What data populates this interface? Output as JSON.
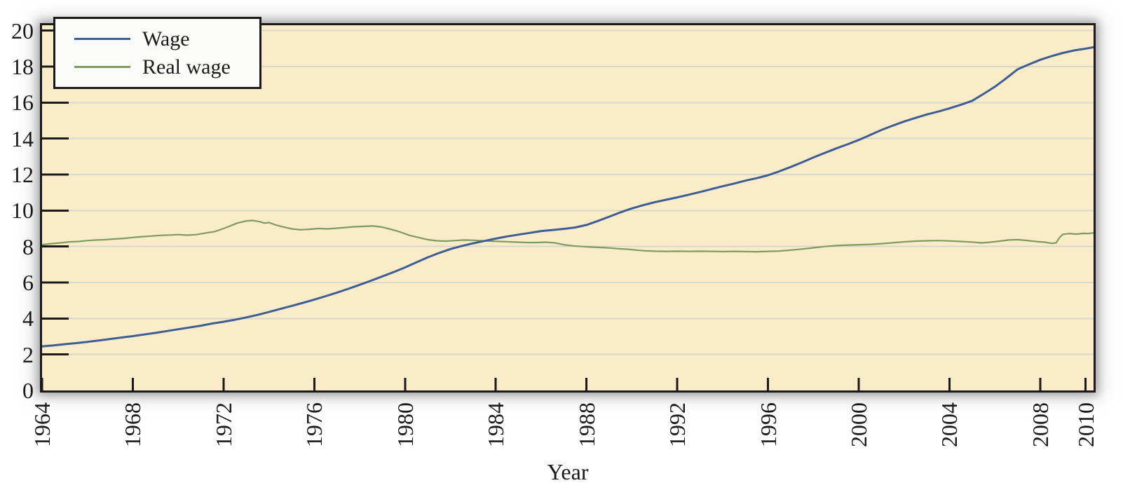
{
  "chart_data": {
    "type": "line",
    "title": "",
    "xlabel": "Year",
    "ylabel": "",
    "xlim": [
      1964,
      2010.35
    ],
    "ylim": [
      0,
      20.3
    ],
    "x_ticks": [
      1964,
      1968,
      1972,
      1976,
      1980,
      1984,
      1988,
      1992,
      1996,
      2000,
      2004,
      2008,
      2010
    ],
    "y_ticks": [
      0,
      2,
      4,
      6,
      8,
      10,
      12,
      14,
      16,
      18,
      20
    ],
    "grid": "horizontal",
    "legend_position": "top-left",
    "plot_background": "#faecc9",
    "grid_color": "#d8d6c9",
    "axis_color": "#1a1a1a",
    "y_tick_length": 38,
    "x_tick_length": 18,
    "series": [
      {
        "name": "Wage",
        "color": "#3d5e94",
        "width": 3,
        "points": [
          [
            1964,
            2.45
          ],
          [
            1964.5,
            2.5
          ],
          [
            1965,
            2.57
          ],
          [
            1965.5,
            2.63
          ],
          [
            1966,
            2.7
          ],
          [
            1966.5,
            2.78
          ],
          [
            1967,
            2.86
          ],
          [
            1967.5,
            2.94
          ],
          [
            1968,
            3.02
          ],
          [
            1968.5,
            3.11
          ],
          [
            1969,
            3.2
          ],
          [
            1969.5,
            3.3
          ],
          [
            1970,
            3.4
          ],
          [
            1970.5,
            3.5
          ],
          [
            1971,
            3.6
          ],
          [
            1971.5,
            3.72
          ],
          [
            1972,
            3.82
          ],
          [
            1972.5,
            3.93
          ],
          [
            1973,
            4.06
          ],
          [
            1973.5,
            4.2
          ],
          [
            1974,
            4.36
          ],
          [
            1974.5,
            4.53
          ],
          [
            1975,
            4.7
          ],
          [
            1975.5,
            4.87
          ],
          [
            1976,
            5.05
          ],
          [
            1976.5,
            5.24
          ],
          [
            1977,
            5.44
          ],
          [
            1977.5,
            5.65
          ],
          [
            1978,
            5.87
          ],
          [
            1978.5,
            6.1
          ],
          [
            1979,
            6.34
          ],
          [
            1979.5,
            6.58
          ],
          [
            1980,
            6.84
          ],
          [
            1980.5,
            7.12
          ],
          [
            1981,
            7.4
          ],
          [
            1981.5,
            7.64
          ],
          [
            1982,
            7.86
          ],
          [
            1982.5,
            8.03
          ],
          [
            1983,
            8.18
          ],
          [
            1983.5,
            8.31
          ],
          [
            1984,
            8.44
          ],
          [
            1984.5,
            8.56
          ],
          [
            1985,
            8.66
          ],
          [
            1985.5,
            8.76
          ],
          [
            1986,
            8.86
          ],
          [
            1986.5,
            8.92
          ],
          [
            1987,
            8.98
          ],
          [
            1987.5,
            9.06
          ],
          [
            1988,
            9.2
          ],
          [
            1988.5,
            9.42
          ],
          [
            1989,
            9.66
          ],
          [
            1989.5,
            9.9
          ],
          [
            1990,
            10.12
          ],
          [
            1990.5,
            10.3
          ],
          [
            1991,
            10.46
          ],
          [
            1991.5,
            10.6
          ],
          [
            1992,
            10.73
          ],
          [
            1992.5,
            10.88
          ],
          [
            1993,
            11.03
          ],
          [
            1993.5,
            11.19
          ],
          [
            1994,
            11.35
          ],
          [
            1994.5,
            11.5
          ],
          [
            1995,
            11.66
          ],
          [
            1995.5,
            11.8
          ],
          [
            1996,
            11.96
          ],
          [
            1996.5,
            12.18
          ],
          [
            1997,
            12.42
          ],
          [
            1997.5,
            12.68
          ],
          [
            1998,
            12.95
          ],
          [
            1998.5,
            13.2
          ],
          [
            1999,
            13.45
          ],
          [
            1999.5,
            13.68
          ],
          [
            2000,
            13.92
          ],
          [
            2000.5,
            14.2
          ],
          [
            2001,
            14.48
          ],
          [
            2001.5,
            14.72
          ],
          [
            2002,
            14.95
          ],
          [
            2002.5,
            15.15
          ],
          [
            2003,
            15.34
          ],
          [
            2003.5,
            15.5
          ],
          [
            2004,
            15.68
          ],
          [
            2004.5,
            15.88
          ],
          [
            2005,
            16.1
          ],
          [
            2005.5,
            16.48
          ],
          [
            2006,
            16.88
          ],
          [
            2006.5,
            17.35
          ],
          [
            2007,
            17.85
          ],
          [
            2007.5,
            18.12
          ],
          [
            2008,
            18.38
          ],
          [
            2008.5,
            18.58
          ],
          [
            2009,
            18.76
          ],
          [
            2009.5,
            18.9
          ],
          [
            2010,
            19.0
          ],
          [
            2010.35,
            19.08
          ]
        ]
      },
      {
        "name": "Real wage",
        "color": "#7d9c5e",
        "width": 2.2,
        "points": [
          [
            1964,
            8.1
          ],
          [
            1964.4,
            8.16
          ],
          [
            1964.8,
            8.2
          ],
          [
            1965.2,
            8.26
          ],
          [
            1965.6,
            8.28
          ],
          [
            1966,
            8.33
          ],
          [
            1966.4,
            8.36
          ],
          [
            1966.8,
            8.38
          ],
          [
            1967.2,
            8.42
          ],
          [
            1967.6,
            8.45
          ],
          [
            1968,
            8.5
          ],
          [
            1968.4,
            8.55
          ],
          [
            1968.8,
            8.58
          ],
          [
            1969.2,
            8.62
          ],
          [
            1969.6,
            8.64
          ],
          [
            1970,
            8.66
          ],
          [
            1970.4,
            8.63
          ],
          [
            1970.8,
            8.66
          ],
          [
            1971.2,
            8.75
          ],
          [
            1971.6,
            8.83
          ],
          [
            1972,
            9.0
          ],
          [
            1972.3,
            9.15
          ],
          [
            1972.6,
            9.3
          ],
          [
            1973,
            9.42
          ],
          [
            1973.3,
            9.45
          ],
          [
            1973.6,
            9.38
          ],
          [
            1973.8,
            9.3
          ],
          [
            1974,
            9.33
          ],
          [
            1974.3,
            9.2
          ],
          [
            1974.6,
            9.1
          ],
          [
            1975,
            8.98
          ],
          [
            1975.4,
            8.93
          ],
          [
            1975.8,
            8.96
          ],
          [
            1976.2,
            9.0
          ],
          [
            1976.6,
            8.98
          ],
          [
            1977,
            9.02
          ],
          [
            1977.4,
            9.06
          ],
          [
            1977.8,
            9.1
          ],
          [
            1978.2,
            9.12
          ],
          [
            1978.6,
            9.14
          ],
          [
            1979,
            9.08
          ],
          [
            1979.4,
            8.95
          ],
          [
            1979.8,
            8.8
          ],
          [
            1980.2,
            8.62
          ],
          [
            1980.6,
            8.5
          ],
          [
            1981,
            8.38
          ],
          [
            1981.4,
            8.32
          ],
          [
            1981.8,
            8.3
          ],
          [
            1982.2,
            8.33
          ],
          [
            1982.6,
            8.36
          ],
          [
            1983,
            8.35
          ],
          [
            1983.4,
            8.32
          ],
          [
            1983.8,
            8.3
          ],
          [
            1984.2,
            8.28
          ],
          [
            1984.6,
            8.26
          ],
          [
            1985,
            8.24
          ],
          [
            1985.4,
            8.22
          ],
          [
            1985.8,
            8.22
          ],
          [
            1986.2,
            8.24
          ],
          [
            1986.6,
            8.2
          ],
          [
            1987,
            8.1
          ],
          [
            1987.4,
            8.04
          ],
          [
            1987.8,
            8.0
          ],
          [
            1988.2,
            7.97
          ],
          [
            1988.6,
            7.95
          ],
          [
            1989,
            7.92
          ],
          [
            1989.4,
            7.88
          ],
          [
            1989.8,
            7.85
          ],
          [
            1990.2,
            7.8
          ],
          [
            1990.6,
            7.76
          ],
          [
            1991,
            7.74
          ],
          [
            1991.5,
            7.73
          ],
          [
            1992,
            7.74
          ],
          [
            1992.5,
            7.73
          ],
          [
            1993,
            7.74
          ],
          [
            1993.5,
            7.73
          ],
          [
            1994,
            7.72
          ],
          [
            1994.5,
            7.73
          ],
          [
            1995,
            7.72
          ],
          [
            1995.5,
            7.71
          ],
          [
            1996,
            7.73
          ],
          [
            1996.5,
            7.75
          ],
          [
            1997,
            7.8
          ],
          [
            1997.5,
            7.86
          ],
          [
            1998,
            7.93
          ],
          [
            1998.5,
            8.0
          ],
          [
            1999,
            8.05
          ],
          [
            1999.5,
            8.08
          ],
          [
            2000,
            8.1
          ],
          [
            2000.5,
            8.12
          ],
          [
            2001,
            8.16
          ],
          [
            2001.5,
            8.21
          ],
          [
            2002,
            8.26
          ],
          [
            2002.5,
            8.3
          ],
          [
            2003,
            8.32
          ],
          [
            2003.5,
            8.33
          ],
          [
            2004,
            8.31
          ],
          [
            2004.5,
            8.28
          ],
          [
            2005,
            8.25
          ],
          [
            2005.4,
            8.2
          ],
          [
            2005.8,
            8.24
          ],
          [
            2006.2,
            8.3
          ],
          [
            2006.6,
            8.36
          ],
          [
            2007,
            8.38
          ],
          [
            2007.4,
            8.34
          ],
          [
            2007.8,
            8.28
          ],
          [
            2008.2,
            8.24
          ],
          [
            2008.5,
            8.18
          ],
          [
            2008.7,
            8.2
          ],
          [
            2008.85,
            8.5
          ],
          [
            2009,
            8.68
          ],
          [
            2009.3,
            8.72
          ],
          [
            2009.6,
            8.69
          ],
          [
            2009.9,
            8.73
          ],
          [
            2010.1,
            8.72
          ],
          [
            2010.35,
            8.76
          ]
        ]
      }
    ]
  }
}
